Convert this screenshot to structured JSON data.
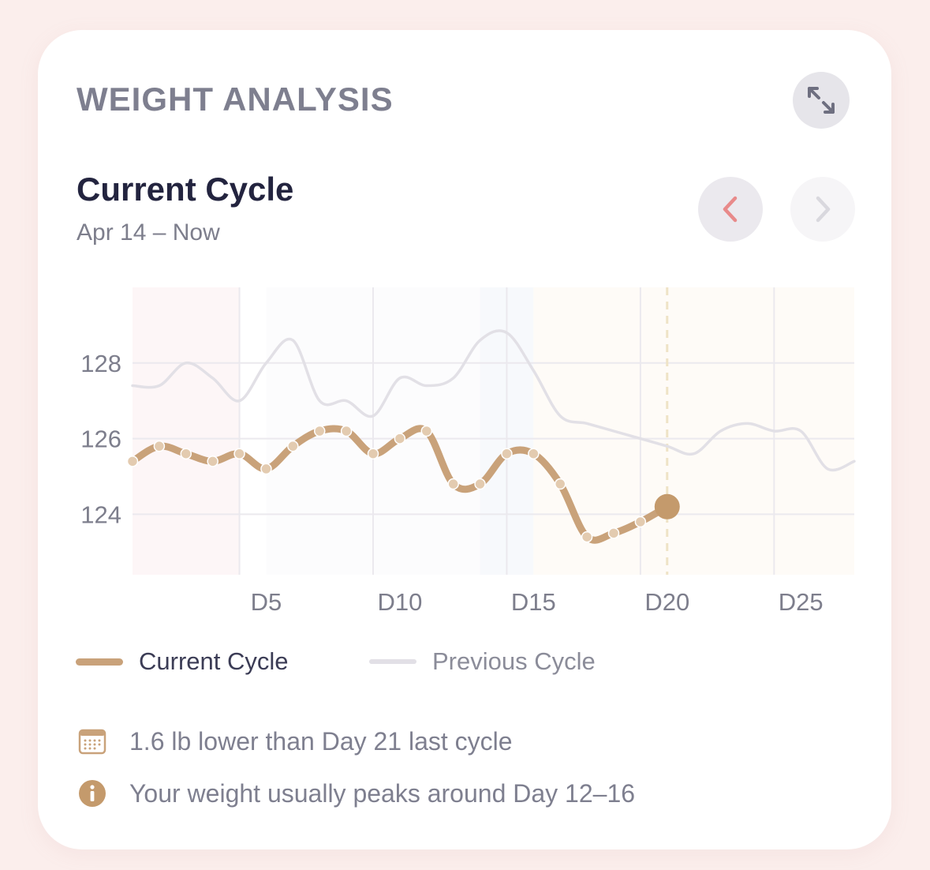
{
  "card": {
    "section_title": "WEIGHT ANALYSIS",
    "expand_icon": "expand-arrows-icon",
    "cycle_title": "Current Cycle",
    "cycle_range": "Apr 14 – Now",
    "nav": {
      "prev_icon": "chevron-left-icon",
      "next_icon": "chevron-right-icon"
    }
  },
  "colors": {
    "current": "#c9a27a",
    "previous": "#e2e0e6",
    "accent_red": "#e88a8a",
    "marker": "#c49a6c"
  },
  "chart_data": {
    "type": "line",
    "x": [
      1,
      2,
      3,
      4,
      5,
      6,
      7,
      8,
      9,
      10,
      11,
      12,
      13,
      14,
      15,
      16,
      17,
      18,
      19,
      20,
      21,
      22,
      23,
      24,
      25,
      26,
      27,
      28
    ],
    "x_ticks": [
      5,
      10,
      15,
      20,
      25
    ],
    "x_tick_labels": [
      "D5",
      "D10",
      "D15",
      "D20",
      "D25"
    ],
    "y_ticks": [
      124,
      126,
      128
    ],
    "ylim": [
      122.4,
      130
    ],
    "xlim": [
      1,
      28
    ],
    "today_day": 21,
    "grid": true,
    "legend_position": "bottom-left",
    "series": [
      {
        "name": "Current Cycle",
        "x": [
          1,
          2,
          3,
          4,
          5,
          6,
          7,
          8,
          9,
          10,
          11,
          12,
          13,
          14,
          15,
          16,
          17,
          18,
          19,
          20,
          21
        ],
        "values": [
          125.4,
          125.8,
          125.6,
          125.4,
          125.6,
          125.2,
          125.8,
          126.2,
          126.2,
          125.6,
          126.0,
          126.2,
          124.8,
          124.8,
          125.6,
          125.6,
          124.8,
          123.4,
          123.5,
          123.8,
          124.2
        ]
      },
      {
        "name": "Previous Cycle",
        "x": [
          1,
          2,
          3,
          4,
          5,
          6,
          7,
          8,
          9,
          10,
          11,
          12,
          13,
          14,
          15,
          16,
          17,
          18,
          19,
          20,
          21,
          22,
          23,
          24,
          25,
          26,
          27,
          28
        ],
        "values": [
          127.4,
          127.4,
          128.0,
          127.6,
          127.0,
          128.0,
          128.6,
          127.0,
          127.0,
          126.6,
          127.6,
          127.4,
          127.6,
          128.6,
          128.8,
          127.8,
          126.6,
          126.4,
          126.2,
          126.0,
          125.8,
          125.6,
          126.2,
          126.4,
          126.2,
          126.2,
          125.2,
          125.4
        ]
      }
    ]
  },
  "legend": {
    "current_label": "Current Cycle",
    "previous_label": "Previous Cycle"
  },
  "insights": [
    {
      "icon": "calendar-icon",
      "text": "1.6 lb lower than Day 21 last cycle"
    },
    {
      "icon": "info-icon",
      "text": "Your weight usually peaks around Day 12–16"
    }
  ]
}
